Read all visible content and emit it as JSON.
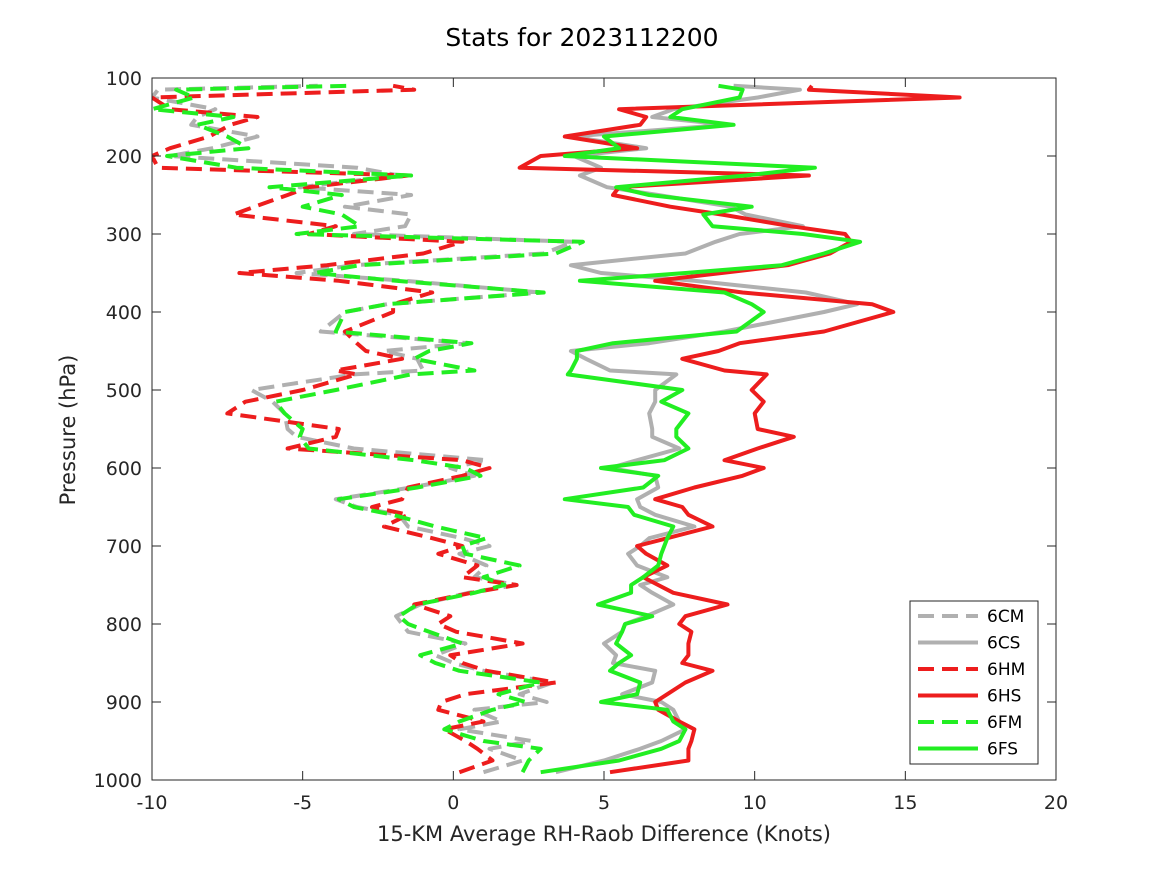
{
  "chart_data": {
    "type": "line",
    "title": "Stats for 2023112200",
    "xlabel": "15-KM Average RH-Raob Difference (Knots)",
    "ylabel": "Pressure (hPa)",
    "xlim": [
      -10,
      20
    ],
    "ylim": [
      100,
      1000
    ],
    "y_reversed": true,
    "xticks": [
      -10,
      -5,
      0,
      5,
      10,
      15,
      20
    ],
    "yticks": [
      100,
      200,
      300,
      400,
      500,
      600,
      700,
      800,
      900,
      1000
    ],
    "grid": false,
    "legend_position": "bottom-right",
    "pressure": [
      990,
      975,
      960,
      950,
      935,
      925,
      910,
      900,
      890,
      875,
      860,
      850,
      840,
      825,
      810,
      800,
      790,
      775,
      760,
      750,
      740,
      725,
      710,
      700,
      690,
      675,
      660,
      650,
      640,
      625,
      610,
      600,
      590,
      575,
      560,
      550,
      530,
      515,
      500,
      480,
      475,
      460,
      450,
      440,
      425,
      400,
      390,
      375,
      360,
      350,
      340,
      325,
      310,
      300,
      290,
      275,
      265,
      250,
      240,
      225,
      215,
      200,
      190,
      175,
      160,
      150,
      140,
      125,
      115,
      110
    ],
    "series": [
      {
        "name": "6CM",
        "color": "#b0b0b0",
        "style": "dashed",
        "values": [
          1.0,
          2.3,
          1.2,
          2.6,
          0.2,
          1.6,
          0.7,
          3.1,
          2.2,
          3.3,
          1.0,
          0.0,
          -0.6,
          0.4,
          -1.5,
          -1.7,
          -1.9,
          -1.1,
          0.5,
          2.1,
          0.7,
          1.1,
          0.2,
          1.2,
          0.3,
          -1.5,
          -1.8,
          -3.2,
          -3.9,
          -1.4,
          0.7,
          -0.1,
          1.1,
          -3.3,
          -5.2,
          -5.5,
          -5.6,
          -6.0,
          -6.7,
          -3.3,
          -1.0,
          -1.2,
          -2.3,
          0.5,
          -4.4,
          -3.6,
          -2.2,
          2.9,
          -1.6,
          -5.2,
          -3.3,
          3.0,
          4.0,
          -3.3,
          -1.6,
          -1.4,
          -3.6,
          -1.4,
          -5.1,
          -1.8,
          -3.2,
          -9.4,
          -8.0,
          -6.5,
          -8.7,
          -8.5,
          -7.9,
          -10.0,
          -9.8,
          -4.5
        ]
      },
      {
        "name": "6CS",
        "color": "#b0b0b0",
        "style": "solid",
        "values": [
          3.4,
          5.0,
          6.2,
          6.9,
          7.7,
          7.5,
          7.3,
          6.9,
          5.6,
          6.6,
          6.7,
          5.3,
          5.4,
          5.0,
          5.6,
          5.7,
          6.4,
          7.3,
          6.6,
          6.2,
          7.1,
          6.1,
          5.8,
          6.2,
          6.5,
          8.0,
          6.7,
          6.2,
          6.1,
          6.8,
          6.7,
          5.2,
          6.1,
          7.5,
          6.6,
          6.6,
          6.5,
          6.7,
          6.7,
          7.4,
          5.2,
          4.4,
          3.9,
          6.5,
          9.0,
          12.3,
          13.4,
          11.7,
          8.0,
          4.9,
          3.9,
          7.7,
          8.7,
          9.5,
          11.6,
          9.7,
          9.2,
          6.8,
          5.1,
          4.2,
          4.9,
          4.0,
          6.4,
          3.9,
          9.1,
          6.6,
          7.3,
          10.1,
          11.5,
          9.3
        ]
      },
      {
        "name": "6HM",
        "color": "#ed1d1d",
        "style": "dashed",
        "values": [
          0.2,
          1.3,
          0.8,
          0.4,
          -0.3,
          1.0,
          -0.5,
          -0.4,
          0.4,
          3.4,
          1.1,
          0.3,
          -0.1,
          2.3,
          0.1,
          -0.5,
          -0.1,
          -1.3,
          0.6,
          2.1,
          0.3,
          0.8,
          -0.5,
          0.3,
          -0.7,
          -2.3,
          -1.5,
          -2.7,
          -1.7,
          -1.5,
          0.3,
          1.2,
          0.3,
          -5.5,
          -3.9,
          -3.8,
          -7.5,
          -6.9,
          -5.0,
          -3.2,
          -3.9,
          -1.7,
          -2.9,
          -3.2,
          -3.6,
          -2.0,
          -2.0,
          -0.7,
          -3.8,
          -7.1,
          -4.2,
          -1.0,
          0.3,
          -4.8,
          -3.9,
          -7.3,
          -6.6,
          -5.5,
          -4.8,
          -1.5,
          -9.8,
          -10.0,
          -9.4,
          -8.1,
          -7.4,
          -6.5,
          -9.4,
          -10.0,
          -1.3,
          -2.0
        ]
      },
      {
        "name": "6HS",
        "color": "#ed1d1d",
        "style": "solid",
        "values": [
          5.2,
          7.8,
          7.8,
          7.9,
          8.0,
          7.5,
          6.8,
          6.7,
          7.1,
          7.7,
          8.6,
          7.6,
          7.8,
          7.8,
          7.9,
          7.5,
          7.7,
          9.1,
          7.3,
          6.8,
          6.3,
          7.1,
          6.4,
          6.1,
          7.1,
          8.6,
          7.8,
          7.6,
          6.7,
          8.0,
          9.6,
          10.3,
          9.0,
          10.1,
          11.3,
          10.1,
          10.0,
          10.3,
          9.9,
          10.4,
          9.0,
          7.6,
          8.8,
          9.5,
          12.3,
          14.6,
          13.9,
          9.6,
          6.7,
          8.9,
          11.1,
          12.5,
          13.2,
          13.0,
          11.2,
          8.9,
          7.2,
          5.3,
          5.5,
          11.8,
          2.2,
          2.9,
          6.1,
          3.7,
          6.2,
          6.4,
          5.5,
          16.8,
          11.8,
          11.9
        ]
      },
      {
        "name": "6FM",
        "color": "#22ee22",
        "style": "dashed",
        "values": [
          2.3,
          2.5,
          2.9,
          1.0,
          -0.3,
          0.2,
          1.3,
          2.4,
          1.5,
          2.9,
          0.2,
          -0.6,
          -1.1,
          0.3,
          -0.8,
          -1.5,
          -1.8,
          -1.2,
          0.7,
          1.7,
          1.0,
          2.2,
          0.4,
          0.3,
          1.1,
          -0.6,
          -2.0,
          -3.3,
          -3.8,
          -1.2,
          0.9,
          0.4,
          -1.3,
          -4.8,
          -5.1,
          -5.0,
          -5.6,
          -5.9,
          -3.9,
          -1.4,
          0.7,
          -1.3,
          -0.8,
          0.6,
          -3.9,
          -3.6,
          -2.2,
          3.0,
          -1.9,
          -4.6,
          -3.1,
          3.4,
          4.3,
          -5.2,
          -3.1,
          -3.7,
          -5.0,
          -3.7,
          -6.1,
          -1.4,
          -7.2,
          -9.5,
          -6.8,
          -7.5,
          -8.5,
          -7.3,
          -10.0,
          -8.6,
          -9.2,
          -3.5
        ]
      },
      {
        "name": "6FS",
        "color": "#22ee22",
        "style": "solid",
        "values": [
          2.9,
          5.5,
          6.9,
          7.5,
          7.7,
          7.3,
          7.1,
          4.9,
          6.1,
          6.2,
          5.2,
          5.5,
          5.9,
          5.4,
          5.6,
          5.7,
          6.6,
          4.8,
          5.9,
          5.9,
          6.3,
          6.8,
          6.9,
          7.0,
          7.1,
          7.3,
          6.0,
          5.8,
          3.7,
          6.3,
          6.8,
          4.9,
          7.0,
          7.8,
          7.4,
          7.4,
          7.8,
          6.9,
          7.6,
          3.8,
          3.9,
          4.1,
          4.1,
          5.3,
          9.4,
          10.3,
          9.9,
          9.0,
          4.2,
          7.7,
          10.9,
          12.3,
          13.5,
          11.6,
          8.6,
          8.3,
          9.9,
          6.5,
          5.4,
          9.7,
          12.0,
          3.7,
          5.5,
          5.0,
          9.3,
          7.2,
          7.6,
          9.5,
          9.6,
          8.8
        ]
      }
    ]
  }
}
